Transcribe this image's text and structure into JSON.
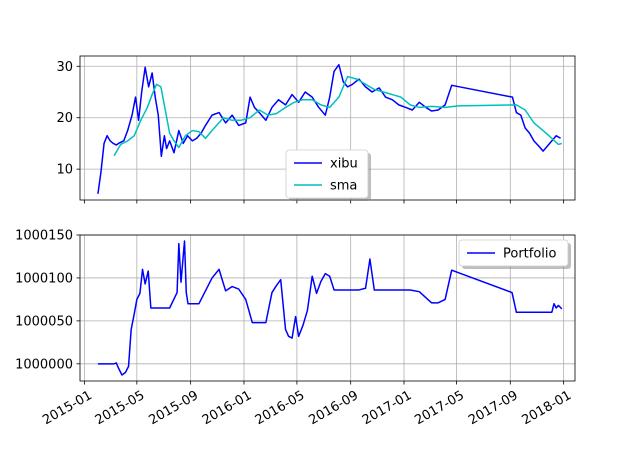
{
  "chart_data": [
    {
      "type": "line",
      "ylim": [
        4,
        32
      ],
      "yticks": [
        10,
        20,
        30
      ],
      "xlim": [
        "2014-12-22",
        "2018-01-27"
      ],
      "grid": true,
      "legend": {
        "placement": "lower-center",
        "entries": [
          "xibu",
          "sma"
        ]
      },
      "series": [
        {
          "name": "xibu",
          "color": "#0000ff",
          "x": [
            "2015-02-01",
            "2015-02-08",
            "2015-02-15",
            "2015-02-22",
            "2015-03-01",
            "2015-03-08",
            "2015-03-15",
            "2015-03-22",
            "2015-04-01",
            "2015-04-10",
            "2015-04-20",
            "2015-04-28",
            "2015-05-05",
            "2015-05-12",
            "2015-05-20",
            "2015-05-28",
            "2015-06-05",
            "2015-06-12",
            "2015-06-19",
            "2015-06-26",
            "2015-07-03",
            "2015-07-08",
            "2015-07-15",
            "2015-07-25",
            "2015-08-05",
            "2015-08-15",
            "2015-08-25",
            "2015-09-05",
            "2015-09-15",
            "2015-09-25",
            "2015-10-05",
            "2015-10-20",
            "2015-11-05",
            "2015-11-20",
            "2015-12-05",
            "2015-12-20",
            "2016-01-05",
            "2016-01-15",
            "2016-01-25",
            "2016-02-05",
            "2016-02-20",
            "2016-03-05",
            "2016-03-20",
            "2016-04-05",
            "2016-04-20",
            "2016-05-05",
            "2016-05-20",
            "2016-06-05",
            "2016-06-20",
            "2016-07-05",
            "2016-07-15",
            "2016-07-25",
            "2016-08-05",
            "2016-08-15",
            "2016-08-25",
            "2016-09-05",
            "2016-09-20",
            "2016-10-05",
            "2016-10-20",
            "2016-11-05",
            "2016-11-20",
            "2016-12-05",
            "2016-12-20",
            "2017-01-05",
            "2017-01-20",
            "2017-02-05",
            "2017-02-20",
            "2017-03-05",
            "2017-03-20",
            "2017-04-05",
            "2017-04-20",
            "2017-09-06",
            "2017-09-15",
            "2017-09-25",
            "2017-10-05",
            "2017-10-15",
            "2017-10-25",
            "2017-11-05",
            "2017-11-15",
            "2017-11-25",
            "2017-12-05",
            "2017-12-15",
            "2017-12-25"
          ],
          "values": [
            5.2,
            9.5,
            15.0,
            16.5,
            15.5,
            15.0,
            14.7,
            15.1,
            15.5,
            17.5,
            20.5,
            24.0,
            19.5,
            25.0,
            29.8,
            26.0,
            28.7,
            24.0,
            20.5,
            12.5,
            16.5,
            14.0,
            15.5,
            13.2,
            17.5,
            15.0,
            16.5,
            15.5,
            16.0,
            17.0,
            18.5,
            20.5,
            21.0,
            19.0,
            20.5,
            18.5,
            19.0,
            24.0,
            22.0,
            21.0,
            19.5,
            22.0,
            23.5,
            22.5,
            24.5,
            23.0,
            25.0,
            24.0,
            22.0,
            20.5,
            24.0,
            29.0,
            30.3,
            27.0,
            26.0,
            26.5,
            27.5,
            26.0,
            25.0,
            25.8,
            24.0,
            23.5,
            22.5,
            22.0,
            21.5,
            23.0,
            22.0,
            21.3,
            21.5,
            22.5,
            26.3,
            24.0,
            21.0,
            20.5,
            18.0,
            17.0,
            15.5,
            14.5,
            13.5,
            14.5,
            15.5,
            16.5,
            16.0
          ]
        },
        {
          "name": "sma",
          "color": "#00bfbf",
          "x": [
            "2015-03-10",
            "2015-03-25",
            "2015-04-10",
            "2015-04-25",
            "2015-05-10",
            "2015-05-25",
            "2015-06-05",
            "2015-06-15",
            "2015-06-25",
            "2015-07-05",
            "2015-07-15",
            "2015-07-25",
            "2015-08-05",
            "2015-08-20",
            "2015-09-05",
            "2015-09-20",
            "2015-10-05",
            "2015-10-25",
            "2015-11-15",
            "2015-12-05",
            "2015-12-25",
            "2016-01-15",
            "2016-02-05",
            "2016-02-25",
            "2016-03-15",
            "2016-04-05",
            "2016-04-25",
            "2016-05-15",
            "2016-06-05",
            "2016-06-25",
            "2016-07-15",
            "2016-08-05",
            "2016-08-25",
            "2016-09-15",
            "2016-10-05",
            "2016-10-25",
            "2016-11-15",
            "2016-12-05",
            "2016-12-25",
            "2017-01-15",
            "2017-02-05",
            "2017-03-05",
            "2017-04-05",
            "2017-05-05",
            "2017-09-15",
            "2017-10-05",
            "2017-10-25",
            "2017-11-15",
            "2017-12-05",
            "2017-12-20",
            "2017-12-28"
          ],
          "values": [
            12.6,
            14.8,
            15.5,
            16.5,
            19.5,
            22.0,
            24.5,
            26.5,
            26.0,
            21.5,
            17.0,
            15.5,
            14.2,
            16.5,
            17.5,
            17.3,
            16.0,
            18.0,
            20.0,
            19.5,
            19.5,
            20.0,
            21.5,
            20.5,
            20.8,
            22.0,
            23.0,
            23.5,
            23.5,
            22.5,
            22.0,
            24.0,
            28.0,
            27.5,
            26.5,
            25.5,
            25.0,
            24.5,
            24.0,
            22.5,
            22.0,
            22.2,
            22.0,
            22.3,
            22.5,
            21.5,
            19.0,
            17.5,
            16.0,
            14.8,
            15.0
          ]
        }
      ]
    },
    {
      "type": "line",
      "ylim": [
        999980,
        1000150
      ],
      "yticks": [
        1000000,
        1000050,
        1000100,
        1000150
      ],
      "xlim": [
        "2014-12-22",
        "2018-01-27"
      ],
      "xticks": [
        "2015-01",
        "2015-05",
        "2015-09",
        "2016-01",
        "2016-05",
        "2016-09",
        "2017-01",
        "2017-05",
        "2017-09",
        "2018-01"
      ],
      "grid": true,
      "legend": {
        "placement": "upper-right",
        "entries": [
          "Portfolio"
        ]
      },
      "series": [
        {
          "name": "Portfolio",
          "color": "#0000ff",
          "x": [
            "2015-02-01",
            "2015-03-10",
            "2015-03-15",
            "2015-03-20",
            "2015-03-28",
            "2015-04-05",
            "2015-04-12",
            "2015-04-18",
            "2015-04-25",
            "2015-05-01",
            "2015-05-08",
            "2015-05-14",
            "2015-05-20",
            "2015-05-27",
            "2015-06-02",
            "2015-06-10",
            "2015-06-20",
            "2015-07-01",
            "2015-07-15",
            "2015-08-01",
            "2015-08-05",
            "2015-08-10",
            "2015-08-18",
            "2015-08-22",
            "2015-08-26",
            "2015-09-05",
            "2015-09-20",
            "2015-10-05",
            "2015-10-20",
            "2015-11-05",
            "2015-11-20",
            "2015-12-05",
            "2015-12-20",
            "2016-01-05",
            "2016-01-20",
            "2016-02-05",
            "2016-02-20",
            "2016-03-05",
            "2016-03-15",
            "2016-03-25",
            "2016-04-05",
            "2016-04-12",
            "2016-04-20",
            "2016-04-28",
            "2016-05-05",
            "2016-05-15",
            "2016-05-25",
            "2016-06-05",
            "2016-06-15",
            "2016-06-25",
            "2016-07-05",
            "2016-07-15",
            "2016-07-25",
            "2016-08-05",
            "2016-08-20",
            "2016-09-05",
            "2016-09-20",
            "2016-10-05",
            "2016-10-15",
            "2016-10-25",
            "2016-11-05",
            "2016-11-20",
            "2016-12-05",
            "2016-12-25",
            "2017-01-15",
            "2017-02-05",
            "2017-02-20",
            "2017-03-05",
            "2017-03-20",
            "2017-04-05",
            "2017-04-20",
            "2017-09-05",
            "2017-09-15",
            "2017-10-05",
            "2017-11-05",
            "2017-12-05",
            "2017-12-10",
            "2017-12-15",
            "2017-12-20",
            "2017-12-28"
          ],
          "values": [
            1000000,
            1000000,
            1000001,
            999995,
            999987,
            999990,
            999997,
            1000040,
            1000058,
            1000075,
            1000082,
            1000110,
            1000093,
            1000108,
            1000065,
            1000065,
            1000065,
            1000065,
            1000065,
            1000083,
            1000140,
            1000095,
            1000143,
            1000083,
            1000070,
            1000070,
            1000070,
            1000085,
            1000100,
            1000110,
            1000085,
            1000090,
            1000087,
            1000075,
            1000048,
            1000048,
            1000048,
            1000083,
            1000091,
            1000098,
            1000040,
            1000032,
            1000030,
            1000055,
            1000032,
            1000045,
            1000062,
            1000102,
            1000082,
            1000096,
            1000105,
            1000102,
            1000086,
            1000086,
            1000086,
            1000086,
            1000086,
            1000088,
            1000122,
            1000086,
            1000086,
            1000086,
            1000086,
            1000086,
            1000086,
            1000084,
            1000077,
            1000071,
            1000071,
            1000075,
            1000109,
            1000083,
            1000060,
            1000060,
            1000060,
            1000060,
            1000070,
            1000065,
            1000068,
            1000064
          ]
        }
      ]
    }
  ]
}
